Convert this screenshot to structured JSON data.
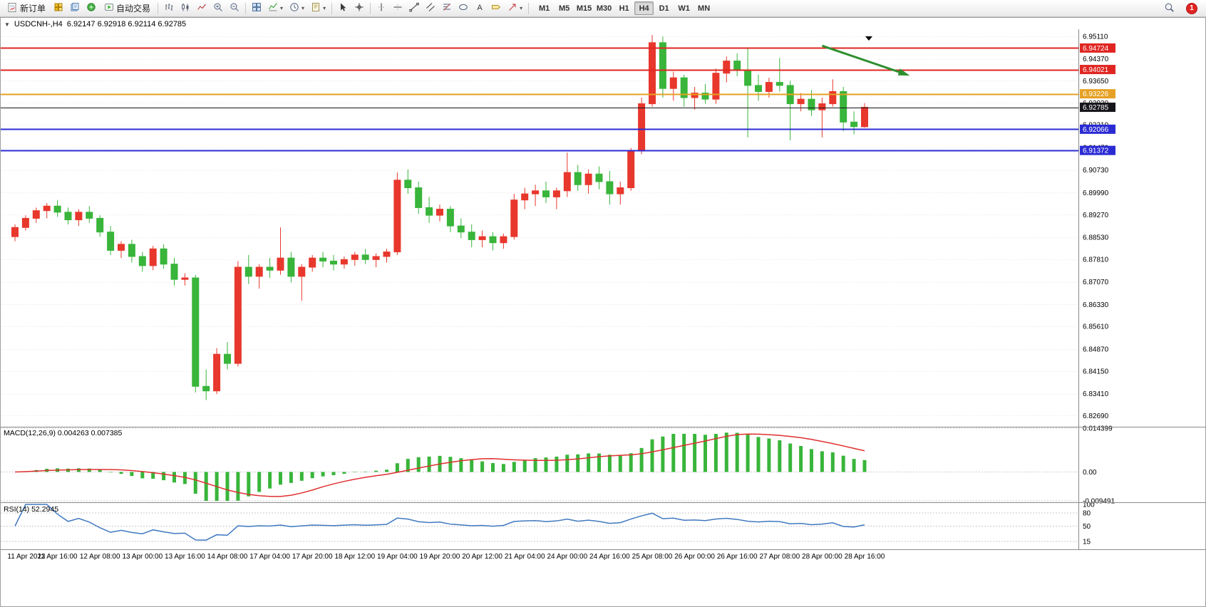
{
  "toolbar": {
    "new_order_label": "新订单",
    "autotrading_label": "自动交易",
    "timeframes": [
      "M1",
      "M5",
      "M15",
      "M30",
      "H1",
      "H4",
      "D1",
      "W1",
      "MN"
    ],
    "active_timeframe": "H4",
    "notification_count": "1"
  },
  "chart": {
    "symbol_period": "USDCNH-,H4",
    "ohlc": "6.92147 6.92918 6.92114 6.92785"
  },
  "price_axis": {
    "labels": [
      "6.95110",
      "6.94370",
      "6.93650",
      "6.92930",
      "6.92210",
      "6.91470",
      "6.90730",
      "6.89990",
      "6.89270",
      "6.88530",
      "6.87810",
      "6.87070",
      "6.86330",
      "6.85610",
      "6.84870",
      "6.84150",
      "6.83410",
      "6.82690"
    ]
  },
  "chart_data": {
    "type": "candlestick",
    "symbol": "USDCNH-",
    "timeframe": "H4",
    "up_color": "#e8372c",
    "down_color": "#38b53a",
    "y_range": [
      6.8235,
      6.952
    ],
    "x_label_every": 4,
    "x_labels": [
      "11 Apr 2023",
      "11 Apr 16:00",
      "12 Apr 08:00",
      "13 Apr 00:00",
      "13 Apr 16:00",
      "14 Apr 08:00",
      "17 Apr 04:00",
      "17 Apr 20:00",
      "18 Apr 12:00",
      "19 Apr 04:00",
      "19 Apr 20:00",
      "20 Apr 12:00",
      "21 Apr 04:00",
      "24 Apr 00:00",
      "24 Apr 16:00",
      "25 Apr 08:00",
      "26 Apr 00:00",
      "26 Apr 16:00",
      "27 Apr 08:00",
      "28 Apr 00:00",
      "28 Apr 16:00"
    ],
    "candles": [
      [
        6.8855,
        6.8895,
        6.884,
        6.8885
      ],
      [
        6.8885,
        6.8925,
        6.8875,
        6.8915
      ],
      [
        6.8915,
        6.895,
        6.89,
        6.894
      ],
      [
        6.894,
        6.8965,
        6.8915,
        6.8955
      ],
      [
        6.8955,
        6.8975,
        6.892,
        6.8935
      ],
      [
        6.8935,
        6.895,
        6.8895,
        6.891
      ],
      [
        6.891,
        6.8945,
        6.889,
        6.8935
      ],
      [
        6.8935,
        6.8955,
        6.89,
        6.8915
      ],
      [
        6.8915,
        6.8925,
        6.8855,
        6.887
      ],
      [
        6.887,
        6.889,
        6.8795,
        6.881
      ],
      [
        6.881,
        6.884,
        6.8785,
        6.883
      ],
      [
        6.883,
        6.8845,
        6.877,
        6.879
      ],
      [
        6.879,
        6.8805,
        6.874,
        6.876
      ],
      [
        6.876,
        6.8825,
        6.8745,
        6.8815
      ],
      [
        6.8815,
        6.883,
        6.875,
        6.8765
      ],
      [
        6.8765,
        6.8785,
        6.8695,
        6.8715
      ],
      [
        6.8715,
        6.8735,
        6.8695,
        6.872
      ],
      [
        6.872,
        6.873,
        6.8345,
        6.8365
      ],
      [
        6.8365,
        6.842,
        6.832,
        6.835
      ],
      [
        6.835,
        6.849,
        6.834,
        6.847
      ],
      [
        6.847,
        6.851,
        6.842,
        6.844
      ],
      [
        6.844,
        6.8775,
        6.843,
        6.8755
      ],
      [
        6.8755,
        6.8795,
        6.87,
        6.8725
      ],
      [
        6.8725,
        6.8765,
        6.8685,
        6.8755
      ],
      [
        6.8755,
        6.8785,
        6.872,
        6.8745
      ],
      [
        6.8745,
        6.8885,
        6.873,
        6.8785
      ],
      [
        6.8785,
        6.8805,
        6.8705,
        6.8725
      ],
      [
        6.8725,
        6.8765,
        6.8645,
        6.8755
      ],
      [
        6.8755,
        6.8795,
        6.874,
        6.8785
      ],
      [
        6.8785,
        6.8805,
        6.8755,
        6.8775
      ],
      [
        6.8775,
        6.8795,
        6.8745,
        6.8765
      ],
      [
        6.8765,
        6.879,
        6.875,
        6.878
      ],
      [
        6.878,
        6.8805,
        6.876,
        6.8795
      ],
      [
        6.8795,
        6.8815,
        6.8765,
        6.878
      ],
      [
        6.878,
        6.88,
        6.8755,
        6.879
      ],
      [
        6.879,
        6.8815,
        6.877,
        6.8805
      ],
      [
        6.8805,
        6.9065,
        6.8795,
        6.904
      ],
      [
        6.904,
        6.9075,
        6.8995,
        6.9015
      ],
      [
        6.9015,
        6.9035,
        6.893,
        6.895
      ],
      [
        6.895,
        6.8985,
        6.89,
        6.8925
      ],
      [
        6.8925,
        6.896,
        6.8905,
        6.8945
      ],
      [
        6.8945,
        6.8955,
        6.887,
        6.889
      ],
      [
        6.889,
        6.8915,
        6.885,
        6.887
      ],
      [
        6.887,
        6.8895,
        6.882,
        6.8845
      ],
      [
        6.8845,
        6.8875,
        6.882,
        6.8855
      ],
      [
        6.8855,
        6.887,
        6.881,
        6.8835
      ],
      [
        6.8835,
        6.8865,
        6.8815,
        6.8855
      ],
      [
        6.8855,
        6.8995,
        6.8845,
        6.8975
      ],
      [
        6.8975,
        6.9015,
        6.8945,
        6.8995
      ],
      [
        6.8995,
        6.9025,
        6.8955,
        6.9005
      ],
      [
        6.9005,
        6.9035,
        6.8965,
        6.8985
      ],
      [
        6.8985,
        6.9015,
        6.8945,
        6.9005
      ],
      [
        6.9005,
        6.913,
        6.8985,
        6.9065
      ],
      [
        6.9065,
        6.909,
        6.9005,
        6.9025
      ],
      [
        6.9025,
        6.9075,
        6.8995,
        6.906
      ],
      [
        6.906,
        6.9085,
        6.901,
        6.9035
      ],
      [
        6.9035,
        6.907,
        6.896,
        6.8995
      ],
      [
        6.8995,
        6.9035,
        6.896,
        6.9015
      ],
      [
        6.9015,
        6.9145,
        6.9005,
        6.9135
      ],
      [
        6.9135,
        6.931,
        6.9125,
        6.929
      ],
      [
        6.929,
        6.9515,
        6.928,
        6.949
      ],
      [
        6.949,
        6.951,
        6.931,
        6.934
      ],
      [
        6.934,
        6.9395,
        6.93,
        6.9375
      ],
      [
        6.9375,
        6.9385,
        6.928,
        6.931
      ],
      [
        6.931,
        6.9345,
        6.927,
        6.9325
      ],
      [
        6.9325,
        6.9355,
        6.929,
        6.9305
      ],
      [
        6.9305,
        6.9405,
        6.929,
        6.939
      ],
      [
        6.939,
        6.9445,
        6.936,
        6.943
      ],
      [
        6.943,
        6.9455,
        6.938,
        6.94
      ],
      [
        6.94,
        6.947,
        6.918,
        6.935
      ],
      [
        6.935,
        6.9385,
        6.93,
        6.933
      ],
      [
        6.933,
        6.9375,
        6.931,
        6.936
      ],
      [
        6.936,
        6.944,
        6.933,
        6.935
      ],
      [
        6.935,
        6.9365,
        6.917,
        6.929
      ],
      [
        6.929,
        6.9325,
        6.9265,
        6.9305
      ],
      [
        6.9305,
        6.9335,
        6.925,
        6.927
      ],
      [
        6.927,
        6.931,
        6.918,
        6.929
      ],
      [
        6.929,
        6.937,
        6.928,
        6.933
      ],
      [
        6.933,
        6.9345,
        6.92,
        6.923
      ],
      [
        6.923,
        6.9265,
        6.919,
        6.9215
      ],
      [
        6.92147,
        6.92918,
        6.92114,
        6.92785
      ]
    ],
    "hlines": [
      {
        "price": 6.94724,
        "label": "6.94724",
        "color": "#e02622",
        "type": "resistance"
      },
      {
        "price": 6.94021,
        "label": "6.94021",
        "color": "#e02622",
        "type": "resistance"
      },
      {
        "price": 6.93226,
        "label": "6.93226",
        "color": "#e6a023",
        "type": "level"
      },
      {
        "price": 6.92785,
        "label": "6.92785",
        "color": "#15151a",
        "type": "bid"
      },
      {
        "price": 6.92066,
        "label": "6.92066",
        "color": "#2b2bd4",
        "type": "support"
      },
      {
        "price": 6.91372,
        "label": "6.91372",
        "color": "#2b2bd4",
        "type": "support"
      }
    ],
    "indicators": [
      {
        "name": "MACD",
        "display": "MACD(12,26,9) 0.004263 0.007385",
        "params": [
          12,
          26,
          9
        ],
        "values": {
          "macd": 0.004263,
          "signal": 0.007385
        },
        "axis_labels": [
          "0.014399",
          "0.00",
          "-0.009491"
        ],
        "range": [
          -0.0095,
          0.0144
        ],
        "histogram_color": "#38b53a",
        "signal_color": "#e03030"
      },
      {
        "name": "RSI",
        "display": "RSI(14) 52.2945",
        "params": [
          14
        ],
        "value": 52.2945,
        "axis_labels": [
          "100",
          "80",
          "50",
          "15"
        ],
        "levels": [
          80,
          50,
          15
        ],
        "line_color": "#4079c0"
      }
    ],
    "annotation": {
      "type": "arrow",
      "color": "#2f8f2f",
      "from_bar": 76,
      "from_price": 6.948,
      "to_bar": 84,
      "to_price": 6.9385
    }
  }
}
